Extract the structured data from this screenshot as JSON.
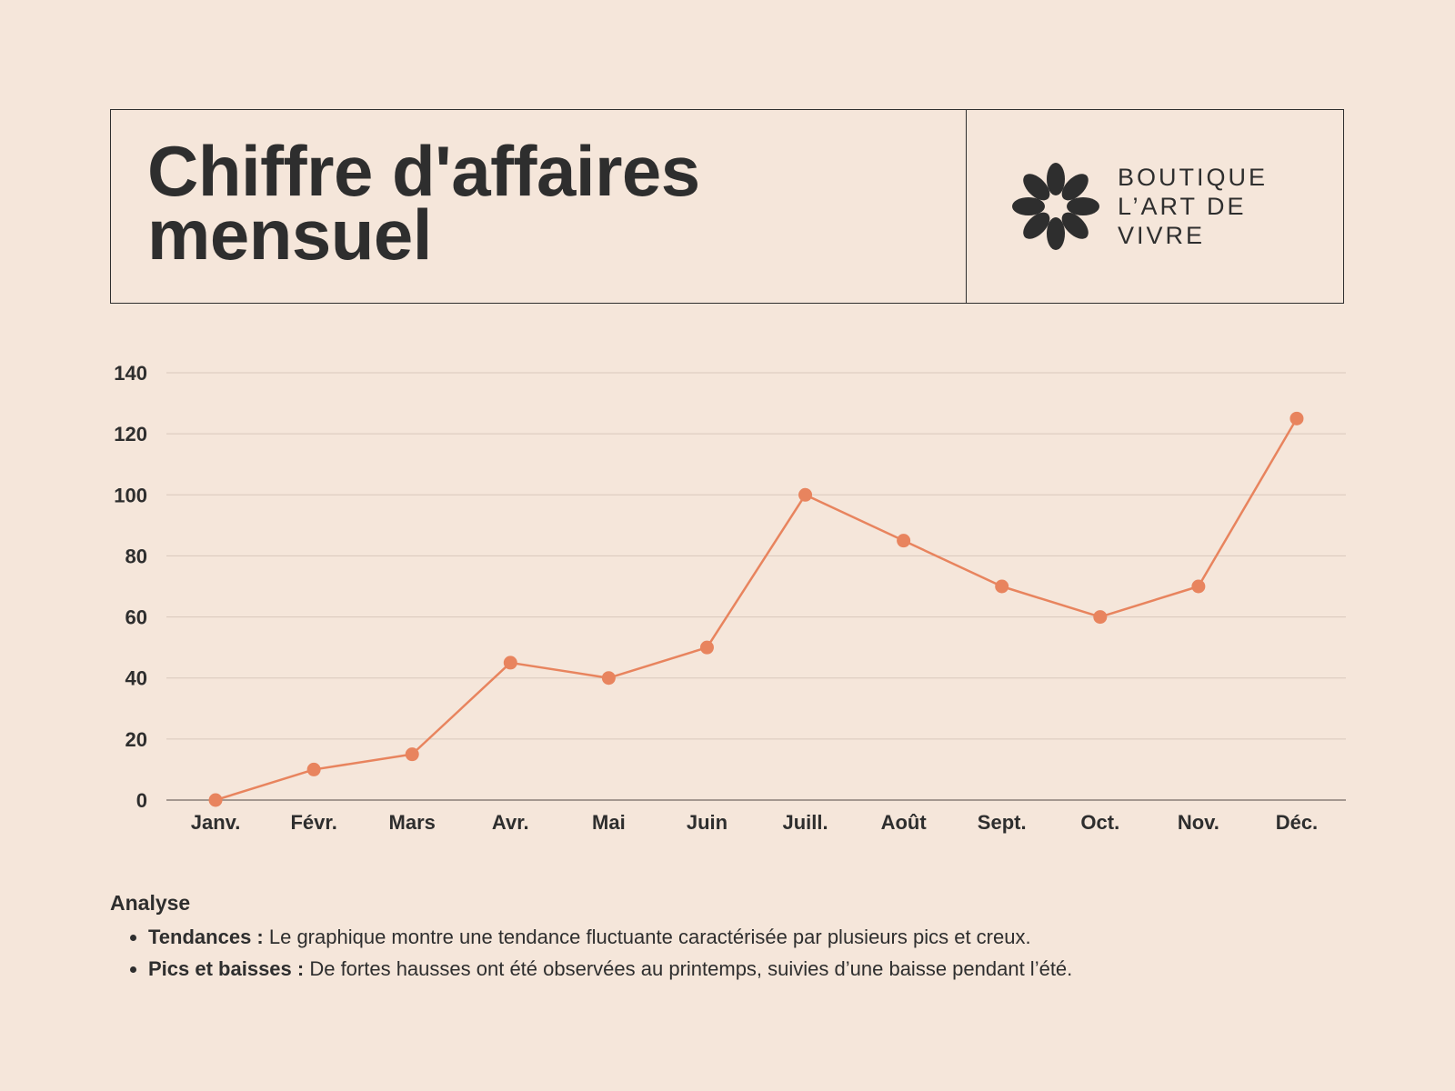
{
  "header": {
    "title": "Chiffre d'affaires mensuel",
    "brand_lines": [
      "BOUTIQUE",
      "L’ART DE",
      "VIVRE"
    ],
    "logo_icon": "flower-icon"
  },
  "colors": {
    "background": "#F5E6DA",
    "text": "#2E2E2E",
    "series": "#E8845E",
    "grid": "#D9C8BC"
  },
  "chart_data": {
    "type": "line",
    "title": "",
    "xlabel": "",
    "ylabel": "",
    "categories": [
      "Janv.",
      "Févr.",
      "Mars",
      "Avr.",
      "Mai",
      "Juin",
      "Juill.",
      "Août",
      "Sept.",
      "Oct.",
      "Nov.",
      "Déc."
    ],
    "series": [
      {
        "values": [
          0,
          10,
          15,
          45,
          40,
          50,
          100,
          85,
          70,
          60,
          70,
          125
        ]
      }
    ],
    "ylim": [
      0,
      140
    ],
    "yticks": [
      0,
      20,
      40,
      60,
      80,
      100,
      120,
      140
    ],
    "grid": true,
    "markers": true
  },
  "analysis": {
    "title": "Analyse",
    "items": [
      {
        "label": "Tendances :",
        "text": " Le graphique montre une tendance fluctuante caractérisée par plusieurs pics et creux."
      },
      {
        "label": "Pics et baisses :",
        "text": " De fortes hausses ont été observées au printemps, suivies d’une baisse pendant l’été."
      }
    ]
  }
}
